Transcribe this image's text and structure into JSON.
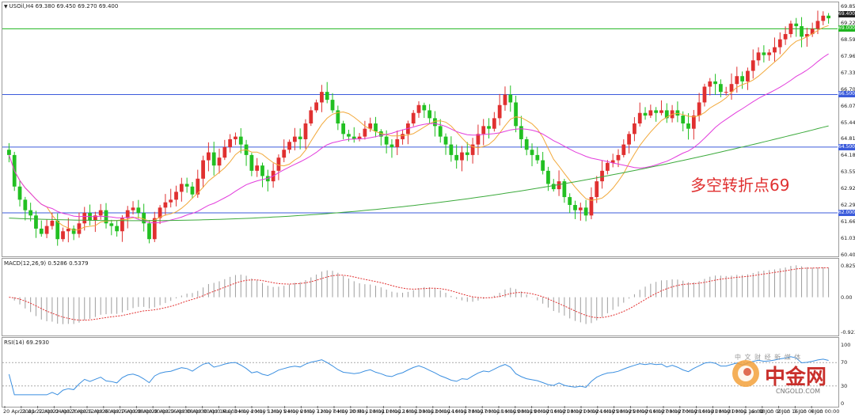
{
  "main": {
    "header": "USOil,H4  69.380 69.450 69.270 69.400",
    "y_labels": [
      "69.855",
      "69.225",
      "68.595",
      "67.965",
      "67.335",
      "66.705",
      "66.075",
      "65.445",
      "64.815",
      "64.185",
      "63.555",
      "62.925",
      "62.295",
      "61.665",
      "61.035",
      "60.405"
    ],
    "price_tags": [
      {
        "text": "69.400",
        "color": "#222222"
      },
      {
        "text": "69.000",
        "color": "#1fb51f"
      },
      {
        "text": "66.500",
        "color": "#3b5bdb"
      },
      {
        "text": "64.500",
        "color": "#3b5bdb"
      },
      {
        "text": "62.000",
        "color": "#3b5bdb"
      }
    ],
    "annotation": "多空转折点69",
    "annotation_color": "#e03030"
  },
  "macd": {
    "header": "MACD(12,26,9) 0.5286 0.5379",
    "y_labels": [
      "0.8254",
      "0.00",
      "-0.9234"
    ]
  },
  "rsi": {
    "header": "RSI(14) 69.2930",
    "y_labels": [
      "100",
      "70",
      "30",
      "0"
    ]
  },
  "x_labels": [
    "20 Apr 2021",
    "21 Apr 12:00",
    "22 Apr 04:00",
    "22 Apr 20:00",
    "23 Apr 12:00",
    "26 Apr 00:00",
    "26 Apr 16:00",
    "27 Apr 08:00",
    "28 Apr 00:00",
    "28 Apr 16:00",
    "29 Apr 08:00",
    "30 Apr 00:00",
    "30 Apr 16:00",
    "3 May 04:00",
    "3 May 20:00",
    "4 May 12:00",
    "5 May 04:00",
    "5 May 20:00",
    "6 May 12:00",
    "7 May 04:00",
    "7 May 20:00",
    "10 May 08:00",
    "11 May 00:00",
    "11 May 16:00",
    "12 May 08:00",
    "13 May 00:00",
    "13 May 16:00",
    "14 May 08:00",
    "17 May 00:00",
    "17 May 16:00",
    "18 May 08:00",
    "19 May 00:00",
    "19 May 16:00",
    "20 May 08:00",
    "21 May 00:00",
    "21 May 16:00",
    "24 May 08:00",
    "25 May 00:00",
    "25 May 16:00",
    "26 May 08:00",
    "27 May 00:00",
    "27 May 16:00",
    "28 May 08:00",
    "31 May 00:00",
    "31 May 16:00",
    "1 Jun 08:00",
    "2 Jun 00:00",
    "2 Jun 16:00",
    "3 Jun 08:00",
    "4 Jun 00:00"
  ],
  "logo": {
    "main": "中金网",
    "sub": "中 文 财 经 新 媒 体",
    "url": "CNGOLD.COM"
  },
  "chart_data": [
    {
      "type": "candlestick",
      "title": "USOil,H4",
      "ylim": [
        60.405,
        69.855
      ],
      "horizontal_lines": [
        {
          "price": 69.0,
          "color": "#1fb51f"
        },
        {
          "price": 66.5,
          "color": "#3b5bdb"
        },
        {
          "price": 64.5,
          "color": "#3b5bdb"
        },
        {
          "price": 62.0,
          "color": "#3b5bdb"
        }
      ],
      "close_series": [
        64.2,
        63.0,
        62.5,
        62.1,
        61.9,
        61.4,
        61.2,
        61.5,
        61.7,
        61.0,
        61.3,
        61.4,
        61.2,
        61.6,
        62.0,
        61.7,
        61.9,
        62.1,
        61.6,
        61.5,
        61.3,
        61.8,
        62.1,
        62.2,
        62.0,
        61.6,
        61.0,
        61.8,
        62.2,
        62.4,
        62.5,
        62.8,
        63.1,
        63.0,
        62.7,
        63.3,
        64.0,
        64.3,
        63.8,
        64.1,
        64.5,
        64.8,
        64.9,
        64.6,
        64.2,
        63.6,
        63.8,
        63.4,
        63.2,
        63.6,
        64.1,
        64.4,
        64.7,
        64.9,
        64.8,
        65.4,
        65.9,
        66.2,
        66.6,
        66.3,
        65.9,
        65.4,
        65.0,
        64.9,
        64.8,
        64.9,
        65.2,
        65.4,
        65.1,
        64.9,
        64.6,
        64.5,
        64.8,
        65.0,
        65.4,
        65.8,
        66.1,
        65.9,
        65.6,
        65.3,
        64.9,
        64.6,
        64.2,
        64.0,
        64.3,
        64.2,
        64.6,
        65.0,
        65.3,
        65.2,
        65.6,
        66.1,
        66.5,
        66.2,
        65.3,
        64.8,
        64.4,
        64.2,
        64.0,
        63.6,
        63.1,
        62.9,
        63.2,
        62.6,
        62.3,
        62.1,
        62.2,
        61.9,
        62.6,
        63.2,
        63.6,
        63.9,
        64.0,
        64.2,
        64.6,
        65.0,
        65.4,
        65.8,
        65.7,
        65.9,
        65.8,
        65.9,
        65.6,
        65.9,
        65.7,
        65.4,
        65.2,
        65.7,
        66.2,
        66.8,
        67.0,
        66.9,
        66.6,
        66.6,
        66.9,
        67.2,
        67.0,
        67.4,
        67.8,
        68.1,
        68.0,
        68.1,
        68.3,
        68.6,
        68.8,
        69.2,
        69.1,
        68.7,
        68.8,
        69.0,
        69.3,
        69.5,
        69.4
      ],
      "ma_colors": {
        "fast": "#f2a93b",
        "mid": "#e23cdc",
        "slow": "#3caa3c"
      }
    },
    {
      "type": "histogram+line",
      "title": "MACD(12,26,9)",
      "values_shown": [
        0.5286,
        0.5379
      ],
      "ylim": [
        -0.9234,
        0.8254
      ],
      "hist_color": "#9e9e9e",
      "signal_color": "#e23030"
    },
    {
      "type": "line",
      "title": "RSI(14)",
      "value_shown": 69.293,
      "ylim": [
        0,
        100
      ],
      "levels": [
        70,
        30
      ],
      "line_color": "#3b8fe0"
    }
  ]
}
